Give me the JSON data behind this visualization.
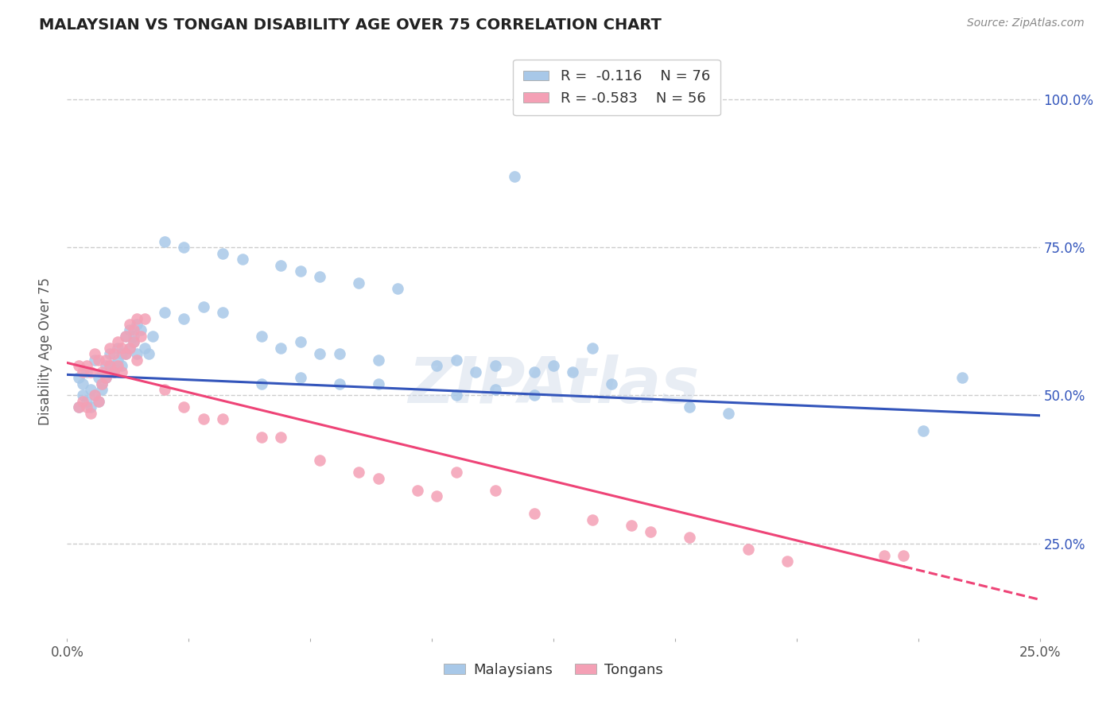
{
  "title": "MALAYSIAN VS TONGAN DISABILITY AGE OVER 75 CORRELATION CHART",
  "source": "Source: ZipAtlas.com",
  "ylabel": "Disability Age Over 75",
  "xlim": [
    0.0,
    0.25
  ],
  "ylim": [
    0.09,
    1.06
  ],
  "xticks": [
    0.0,
    0.03125,
    0.0625,
    0.09375,
    0.125,
    0.15625,
    0.1875,
    0.21875,
    0.25
  ],
  "xtick_labels_show": [
    "0.0%",
    "",
    "",
    "",
    "",
    "",
    "",
    "",
    "25.0%"
  ],
  "yticks": [
    0.25,
    0.5,
    0.75,
    1.0
  ],
  "ytick_labels": [
    "25.0%",
    "50.0%",
    "75.0%",
    "100.0%"
  ],
  "legend_r1": "R =  -0.116",
  "legend_n1": "N = 76",
  "legend_r2": "R = -0.583",
  "legend_n2": "N = 56",
  "malaysian_color": "#a8c8e8",
  "tongan_color": "#f4a0b5",
  "trend_blue": "#3355bb",
  "trend_pink": "#ee4477",
  "background_color": "#ffffff",
  "malaysian_x": [
    0.003,
    0.004,
    0.005,
    0.006,
    0.007,
    0.008,
    0.009,
    0.01,
    0.011,
    0.012,
    0.013,
    0.014,
    0.015,
    0.016,
    0.017,
    0.018,
    0.019,
    0.02,
    0.021,
    0.022,
    0.003,
    0.004,
    0.005,
    0.006,
    0.007,
    0.008,
    0.009,
    0.01,
    0.011,
    0.012,
    0.013,
    0.014,
    0.015,
    0.016,
    0.017,
    0.018,
    0.025,
    0.03,
    0.035,
    0.04,
    0.05,
    0.055,
    0.06,
    0.065,
    0.07,
    0.08,
    0.095,
    0.1,
    0.105,
    0.11,
    0.12,
    0.125,
    0.13,
    0.05,
    0.06,
    0.07,
    0.08,
    0.14,
    0.1,
    0.11,
    0.12,
    0.16,
    0.17,
    0.22,
    0.23,
    0.025,
    0.03,
    0.04,
    0.045,
    0.055,
    0.06,
    0.065,
    0.075,
    0.085,
    0.115,
    0.135
  ],
  "malaysian_y": [
    0.53,
    0.52,
    0.54,
    0.51,
    0.56,
    0.53,
    0.51,
    0.55,
    0.57,
    0.55,
    0.58,
    0.57,
    0.6,
    0.61,
    0.6,
    0.62,
    0.61,
    0.58,
    0.57,
    0.6,
    0.48,
    0.5,
    0.49,
    0.48,
    0.5,
    0.49,
    0.52,
    0.53,
    0.55,
    0.54,
    0.56,
    0.55,
    0.57,
    0.58,
    0.59,
    0.57,
    0.64,
    0.63,
    0.65,
    0.64,
    0.6,
    0.58,
    0.59,
    0.57,
    0.57,
    0.56,
    0.55,
    0.56,
    0.54,
    0.55,
    0.54,
    0.55,
    0.54,
    0.52,
    0.53,
    0.52,
    0.52,
    0.52,
    0.5,
    0.51,
    0.5,
    0.48,
    0.47,
    0.44,
    0.53,
    0.76,
    0.75,
    0.74,
    0.73,
    0.72,
    0.71,
    0.7,
    0.69,
    0.68,
    0.87,
    0.58
  ],
  "tongan_x": [
    0.003,
    0.004,
    0.005,
    0.006,
    0.007,
    0.008,
    0.009,
    0.01,
    0.011,
    0.012,
    0.013,
    0.014,
    0.015,
    0.016,
    0.017,
    0.018,
    0.019,
    0.02,
    0.003,
    0.004,
    0.005,
    0.006,
    0.007,
    0.008,
    0.009,
    0.01,
    0.011,
    0.012,
    0.013,
    0.014,
    0.015,
    0.016,
    0.017,
    0.018,
    0.025,
    0.03,
    0.035,
    0.04,
    0.05,
    0.055,
    0.065,
    0.075,
    0.08,
    0.09,
    0.095,
    0.1,
    0.11,
    0.12,
    0.135,
    0.145,
    0.15,
    0.16,
    0.175,
    0.185,
    0.21,
    0.215
  ],
  "tongan_y": [
    0.55,
    0.54,
    0.55,
    0.54,
    0.57,
    0.56,
    0.54,
    0.56,
    0.58,
    0.57,
    0.59,
    0.58,
    0.6,
    0.62,
    0.61,
    0.63,
    0.6,
    0.63,
    0.48,
    0.49,
    0.48,
    0.47,
    0.5,
    0.49,
    0.52,
    0.53,
    0.55,
    0.54,
    0.55,
    0.54,
    0.57,
    0.58,
    0.59,
    0.56,
    0.51,
    0.48,
    0.46,
    0.46,
    0.43,
    0.43,
    0.39,
    0.37,
    0.36,
    0.34,
    0.33,
    0.37,
    0.34,
    0.3,
    0.29,
    0.28,
    0.27,
    0.26,
    0.24,
    0.22,
    0.23,
    0.23
  ],
  "trend_blue_x0": 0.0,
  "trend_blue_y0": 0.535,
  "trend_blue_x1": 0.25,
  "trend_blue_y1": 0.466,
  "trend_pink_x0": 0.0,
  "trend_pink_y0": 0.555,
  "trend_pink_x1": 0.25,
  "trend_pink_y1": 0.155,
  "trend_pink_solid_end": 0.215,
  "trend_pink_dashed_start": 0.215
}
